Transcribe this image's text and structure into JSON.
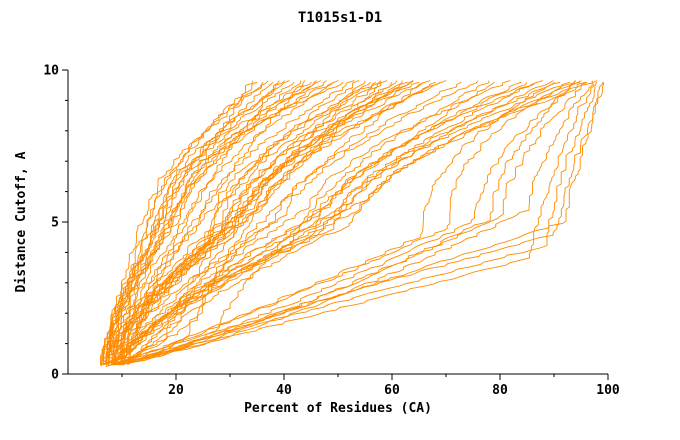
{
  "colors": {
    "curve": "#ff8c00",
    "axis": "#000000",
    "text": "#000000",
    "background": "#ffffff"
  },
  "chart_data": {
    "type": "line",
    "title": "T1015s1-D1",
    "xlabel": "Percent of Residues (CA)",
    "ylabel": "Distance Cutoff, A",
    "xlim": [
      0,
      100
    ],
    "ylim": [
      0,
      10
    ],
    "grid": false,
    "legend": "none",
    "x_ticks": {
      "major": [
        20,
        40,
        60,
        80,
        100
      ],
      "minor": [
        10,
        30,
        50,
        70,
        90
      ]
    },
    "y_ticks": {
      "major": [
        0,
        5,
        10
      ],
      "minor": [
        1,
        2,
        3,
        4,
        6,
        7,
        8,
        9
      ]
    },
    "series_format": [
      "x_start_pct",
      "y_start_A",
      "x_mid_pct",
      "y_mid_A",
      "x_top_pct",
      "y_top_A",
      "shape_p1",
      "shape_p2",
      "seed"
    ],
    "series": [
      [
        6,
        0.3,
        10,
        1.0,
        34,
        9.65,
        0.7,
        1.35,
        1
      ],
      [
        6,
        0.3,
        15,
        5.0,
        37,
        9.65,
        1.3,
        1.6,
        2
      ],
      [
        6.5,
        0.3,
        12,
        1.2,
        39,
        9.65,
        0.7,
        1.3,
        3
      ],
      [
        6,
        0.35,
        17,
        5.2,
        41,
        9.65,
        1.2,
        1.7,
        4
      ],
      [
        6.5,
        0.3,
        18,
        4.6,
        43,
        9.65,
        1.4,
        1.5,
        5
      ],
      [
        7,
        0.3,
        13,
        1.5,
        44,
        9.65,
        0.75,
        1.3,
        6
      ],
      [
        6,
        0.3,
        20,
        5.0,
        46,
        9.65,
        1.5,
        1.6,
        7
      ],
      [
        7,
        0.35,
        21,
        5.4,
        48,
        9.65,
        1.4,
        1.5,
        8
      ],
      [
        6.5,
        0.3,
        22,
        5.1,
        50,
        9.65,
        1.3,
        1.5,
        9
      ],
      [
        7,
        0.3,
        16,
        6.0,
        36,
        9.6,
        1.6,
        1.3,
        10
      ],
      [
        6,
        0.25,
        13,
        3.8,
        35,
        9.6,
        1.5,
        1.8,
        11
      ],
      [
        6.5,
        0.3,
        18,
        5.8,
        42,
        9.6,
        1.4,
        1.4,
        12
      ],
      [
        7.5,
        0.35,
        20,
        6.0,
        45,
        9.6,
        1.3,
        1.5,
        13
      ],
      [
        6,
        0.3,
        15,
        4.2,
        38,
        9.6,
        1.6,
        1.6,
        14
      ],
      [
        7,
        0.3,
        22,
        6.2,
        49,
        9.6,
        1.2,
        1.4,
        15
      ],
      [
        6.5,
        0.35,
        19,
        5.6,
        47,
        9.65,
        1.4,
        1.5,
        16
      ],
      [
        7,
        0.3,
        17,
        5.0,
        40,
        9.65,
        1.5,
        1.5,
        17
      ],
      [
        6,
        0.3,
        21,
        5.8,
        51,
        9.6,
        1.3,
        1.6,
        18
      ],
      [
        7,
        0.3,
        24,
        5.0,
        53,
        9.65,
        1.4,
        1.5,
        19
      ],
      [
        7,
        0.35,
        18,
        1.2,
        55,
        9.65,
        0.65,
        1.35,
        20
      ],
      [
        8,
        0.3,
        27,
        5.5,
        57,
        9.6,
        1.4,
        1.4,
        21
      ],
      [
        7.5,
        0.3,
        28,
        5.0,
        58,
        9.65,
        1.5,
        1.5,
        22
      ],
      [
        8,
        0.35,
        20,
        1.5,
        60,
        9.6,
        0.7,
        1.4,
        23
      ],
      [
        7,
        0.3,
        29,
        4.8,
        61,
        9.65,
        1.4,
        1.6,
        24
      ],
      [
        8,
        0.3,
        31,
        5.2,
        63,
        9.6,
        1.4,
        1.4,
        25
      ],
      [
        7.5,
        0.35,
        32,
        5.6,
        64,
        9.65,
        1.3,
        1.5,
        26
      ],
      [
        8,
        0.3,
        22,
        1.2,
        66,
        9.6,
        0.65,
        1.45,
        27
      ],
      [
        7,
        0.3,
        34,
        5.4,
        67,
        9.65,
        1.4,
        1.6,
        28
      ],
      [
        8.5,
        0.35,
        35,
        5.8,
        69,
        9.6,
        1.3,
        1.4,
        29
      ],
      [
        8,
        0.3,
        30,
        4.5,
        62,
        9.65,
        1.6,
        1.5,
        30
      ],
      [
        7.5,
        0.3,
        25,
        4.2,
        56,
        9.6,
        1.5,
        1.7,
        31
      ],
      [
        8,
        0.35,
        28,
        4.6,
        59,
        9.65,
        1.4,
        1.5,
        32
      ],
      [
        9,
        0.3,
        33,
        5.5,
        65,
        9.6,
        1.3,
        1.5,
        33
      ],
      [
        7,
        0.3,
        26,
        4.4,
        54,
        9.65,
        1.5,
        1.6,
        34
      ],
      [
        8.5,
        0.3,
        34,
        5.2,
        68,
        9.6,
        1.4,
        1.4,
        35
      ],
      [
        9,
        0.35,
        36,
        5.6,
        70,
        9.65,
        1.3,
        1.5,
        36
      ],
      [
        8,
        0.3,
        24,
        1.8,
        58,
        9.6,
        0.75,
        1.4,
        37
      ],
      [
        7.5,
        0.3,
        31,
        4.9,
        64,
        9.65,
        1.4,
        1.5,
        38
      ],
      [
        8,
        0.3,
        38,
        5.0,
        73,
        9.6,
        1.4,
        1.5,
        39
      ],
      [
        9,
        0.35,
        40,
        5.2,
        76,
        9.65,
        1.3,
        1.5,
        40
      ],
      [
        8.5,
        0.3,
        28,
        1.5,
        79,
        9.6,
        0.6,
        1.4,
        41
      ],
      [
        9,
        0.3,
        44,
        5.4,
        82,
        9.65,
        1.3,
        1.5,
        42
      ],
      [
        10,
        0.35,
        46,
        5.2,
        85,
        9.6,
        1.4,
        1.4,
        43
      ],
      [
        9.5,
        0.3,
        48,
        5.5,
        88,
        9.65,
        1.3,
        1.5,
        44
      ],
      [
        10,
        0.3,
        50,
        5.3,
        91,
        9.6,
        1.4,
        1.5,
        45
      ],
      [
        9,
        0.35,
        52,
        5.6,
        94,
        9.65,
        1.3,
        1.4,
        46
      ],
      [
        10,
        0.3,
        54,
        5.4,
        96,
        9.6,
        1.4,
        1.5,
        47
      ],
      [
        11,
        0.3,
        56,
        5.8,
        98,
        9.65,
        1.3,
        1.4,
        48
      ],
      [
        9,
        0.3,
        45,
        4.5,
        84,
        9.6,
        1.5,
        1.6,
        49
      ],
      [
        10,
        0.35,
        49,
        4.8,
        90,
        9.65,
        1.4,
        1.5,
        50
      ],
      [
        11,
        0.3,
        53,
        5.0,
        95,
        9.6,
        1.3,
        1.6,
        51
      ],
      [
        9.5,
        0.3,
        41,
        4.2,
        78,
        9.65,
        1.5,
        1.5,
        52
      ],
      [
        10.5,
        0.35,
        47,
        4.6,
        87,
        9.6,
        1.4,
        1.5,
        53
      ],
      [
        8,
        0.3,
        70,
        4.8,
        93,
        9.6,
        0.9,
        2.2,
        54
      ],
      [
        9,
        0.3,
        75,
        5.0,
        95,
        9.65,
        0.85,
        1.8,
        55
      ],
      [
        8.5,
        0.3,
        80,
        5.2,
        96,
        9.6,
        0.8,
        1.6,
        56
      ],
      [
        9,
        0.35,
        85,
        5.4,
        97,
        9.65,
        0.75,
        1.5,
        57
      ],
      [
        8,
        0.3,
        65,
        4.5,
        90,
        9.6,
        0.9,
        2.0,
        58
      ],
      [
        9.5,
        0.3,
        78,
        5.1,
        94,
        9.65,
        0.8,
        1.7,
        59
      ],
      [
        7,
        0.25,
        88,
        4.2,
        98,
        9.6,
        1.0,
        1.3,
        60
      ],
      [
        8,
        0.3,
        90,
        4.6,
        99,
        9.6,
        1.05,
        1.2,
        61
      ],
      [
        7,
        0.25,
        85,
        3.8,
        97,
        9.55,
        0.95,
        1.3,
        62
      ],
      [
        10,
        0.3,
        92,
        5.0,
        99,
        9.6,
        1.0,
        1.2,
        63
      ]
    ]
  }
}
